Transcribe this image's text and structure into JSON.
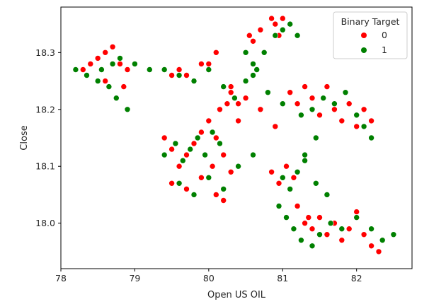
{
  "chart_data": {
    "type": "scatter",
    "title": "",
    "xlabel": "Open US OIL",
    "ylabel": "Close",
    "xlim": [
      78.0,
      82.75
    ],
    "ylim": [
      17.92,
      18.38
    ],
    "x_ticks": [
      78,
      79,
      80,
      81,
      82
    ],
    "y_ticks": [
      18.0,
      18.1,
      18.2,
      18.3
    ],
    "x_tick_labels": [
      "78",
      "79",
      "80",
      "81",
      "82"
    ],
    "y_tick_labels": [
      "18.0",
      "18.1",
      "18.2",
      "18.3"
    ],
    "grid": false,
    "legend": {
      "title": "Binary Target",
      "placement": "top-right",
      "entries": [
        {
          "label": "0",
          "color": "#ff0000"
        },
        {
          "label": "1",
          "color": "#008000"
        }
      ]
    },
    "series": [
      {
        "color": "#ff0000",
        "label": "0",
        "x": [
          78.3,
          78.4,
          78.5,
          78.6,
          78.7,
          78.8,
          78.6,
          78.75,
          78.85,
          78.9,
          79.4,
          79.5,
          79.6,
          79.7,
          79.9,
          80.0,
          80.1,
          80.15,
          80.25,
          80.3,
          80.4,
          80.55,
          80.6,
          80.7,
          80.85,
          80.9,
          81.0,
          80.95,
          80.4,
          80.3,
          80.5,
          80.7,
          80.9,
          81.1,
          81.2,
          81.3,
          81.4,
          81.5,
          81.6,
          81.7,
          81.8,
          81.9,
          82.0,
          82.1,
          82.2,
          79.4,
          79.5,
          79.6,
          79.7,
          79.8,
          79.9,
          80.0,
          80.1,
          80.2,
          79.5,
          79.7,
          79.9,
          80.1,
          80.3,
          80.05,
          80.2,
          80.85,
          80.95,
          81.05,
          81.15,
          81.3,
          81.4,
          81.5,
          81.6,
          81.7,
          81.8,
          81.9,
          82.0,
          82.1,
          82.2,
          82.3,
          81.2,
          81.35
        ],
        "y": [
          18.27,
          18.28,
          18.29,
          18.3,
          18.31,
          18.28,
          18.25,
          18.22,
          18.24,
          18.27,
          18.27,
          18.26,
          18.27,
          18.26,
          18.28,
          18.28,
          18.3,
          18.2,
          18.21,
          18.23,
          18.21,
          18.33,
          18.32,
          18.34,
          18.36,
          18.35,
          18.36,
          18.33,
          18.18,
          18.24,
          18.22,
          18.2,
          18.17,
          18.23,
          18.21,
          18.24,
          18.22,
          18.19,
          18.24,
          18.2,
          18.18,
          18.21,
          18.17,
          18.2,
          18.18,
          18.15,
          18.13,
          18.1,
          18.12,
          18.14,
          18.16,
          18.18,
          18.15,
          18.12,
          18.07,
          18.06,
          18.08,
          18.05,
          18.09,
          18.1,
          18.04,
          18.09,
          18.07,
          18.1,
          18.08,
          18.0,
          17.99,
          18.01,
          17.98,
          18.0,
          17.97,
          17.99,
          18.02,
          17.98,
          17.96,
          17.95,
          18.03,
          18.01
        ]
      },
      {
        "color": "#008000",
        "label": "1",
        "x": [
          78.2,
          78.35,
          78.5,
          78.65,
          78.75,
          78.9,
          78.55,
          78.7,
          78.8,
          79.0,
          79.2,
          79.4,
          79.6,
          79.8,
          80.0,
          80.2,
          80.35,
          80.5,
          80.6,
          80.75,
          80.9,
          81.0,
          81.1,
          81.2,
          80.5,
          80.65,
          80.8,
          81.0,
          81.25,
          81.4,
          81.55,
          81.7,
          81.85,
          82.0,
          82.1,
          82.2,
          79.4,
          79.55,
          79.65,
          79.75,
          79.85,
          79.95,
          80.05,
          80.15,
          79.6,
          79.8,
          80.0,
          80.2,
          80.4,
          80.6,
          81.0,
          81.1,
          81.2,
          81.3,
          81.45,
          81.6,
          80.95,
          81.05,
          81.15,
          81.25,
          81.4,
          81.5,
          81.65,
          81.8,
          82.0,
          82.2,
          82.35,
          82.5,
          81.3,
          81.45,
          80.6
        ],
        "y": [
          18.27,
          18.26,
          18.25,
          18.24,
          18.22,
          18.2,
          18.27,
          18.28,
          18.29,
          18.28,
          18.27,
          18.27,
          18.26,
          18.25,
          18.27,
          18.24,
          18.22,
          18.3,
          18.28,
          18.3,
          18.33,
          18.34,
          18.35,
          18.33,
          18.25,
          18.27,
          18.23,
          18.21,
          18.19,
          18.2,
          18.22,
          18.21,
          18.23,
          18.19,
          18.17,
          18.15,
          18.12,
          18.14,
          18.11,
          18.13,
          18.15,
          18.12,
          18.16,
          18.14,
          18.07,
          18.05,
          18.08,
          18.06,
          18.1,
          18.12,
          18.08,
          18.06,
          18.09,
          18.11,
          18.07,
          18.05,
          18.03,
          18.01,
          17.99,
          17.97,
          17.96,
          17.98,
          18.0,
          17.99,
          18.01,
          17.99,
          17.97,
          17.98,
          18.12,
          18.15,
          18.26
        ]
      }
    ]
  }
}
